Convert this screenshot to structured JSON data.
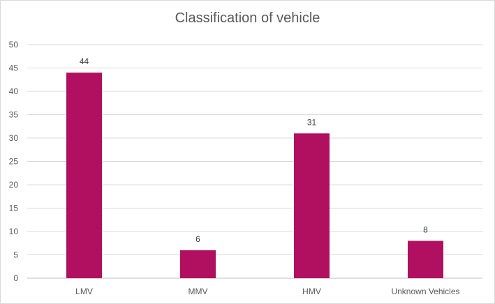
{
  "chart_data": {
    "type": "bar",
    "title": "Classification of vehicle",
    "categories": [
      "LMV",
      "MMV",
      "HMV",
      "Unknown Vehicles"
    ],
    "values": [
      44,
      6,
      31,
      8
    ],
    "xlabel": "",
    "ylabel": "",
    "ylim": [
      0,
      50
    ],
    "yticks": [
      0,
      5,
      10,
      15,
      20,
      25,
      30,
      35,
      40,
      45,
      50
    ],
    "grid": true,
    "legend": "none",
    "bar_color": "#b0105f"
  }
}
